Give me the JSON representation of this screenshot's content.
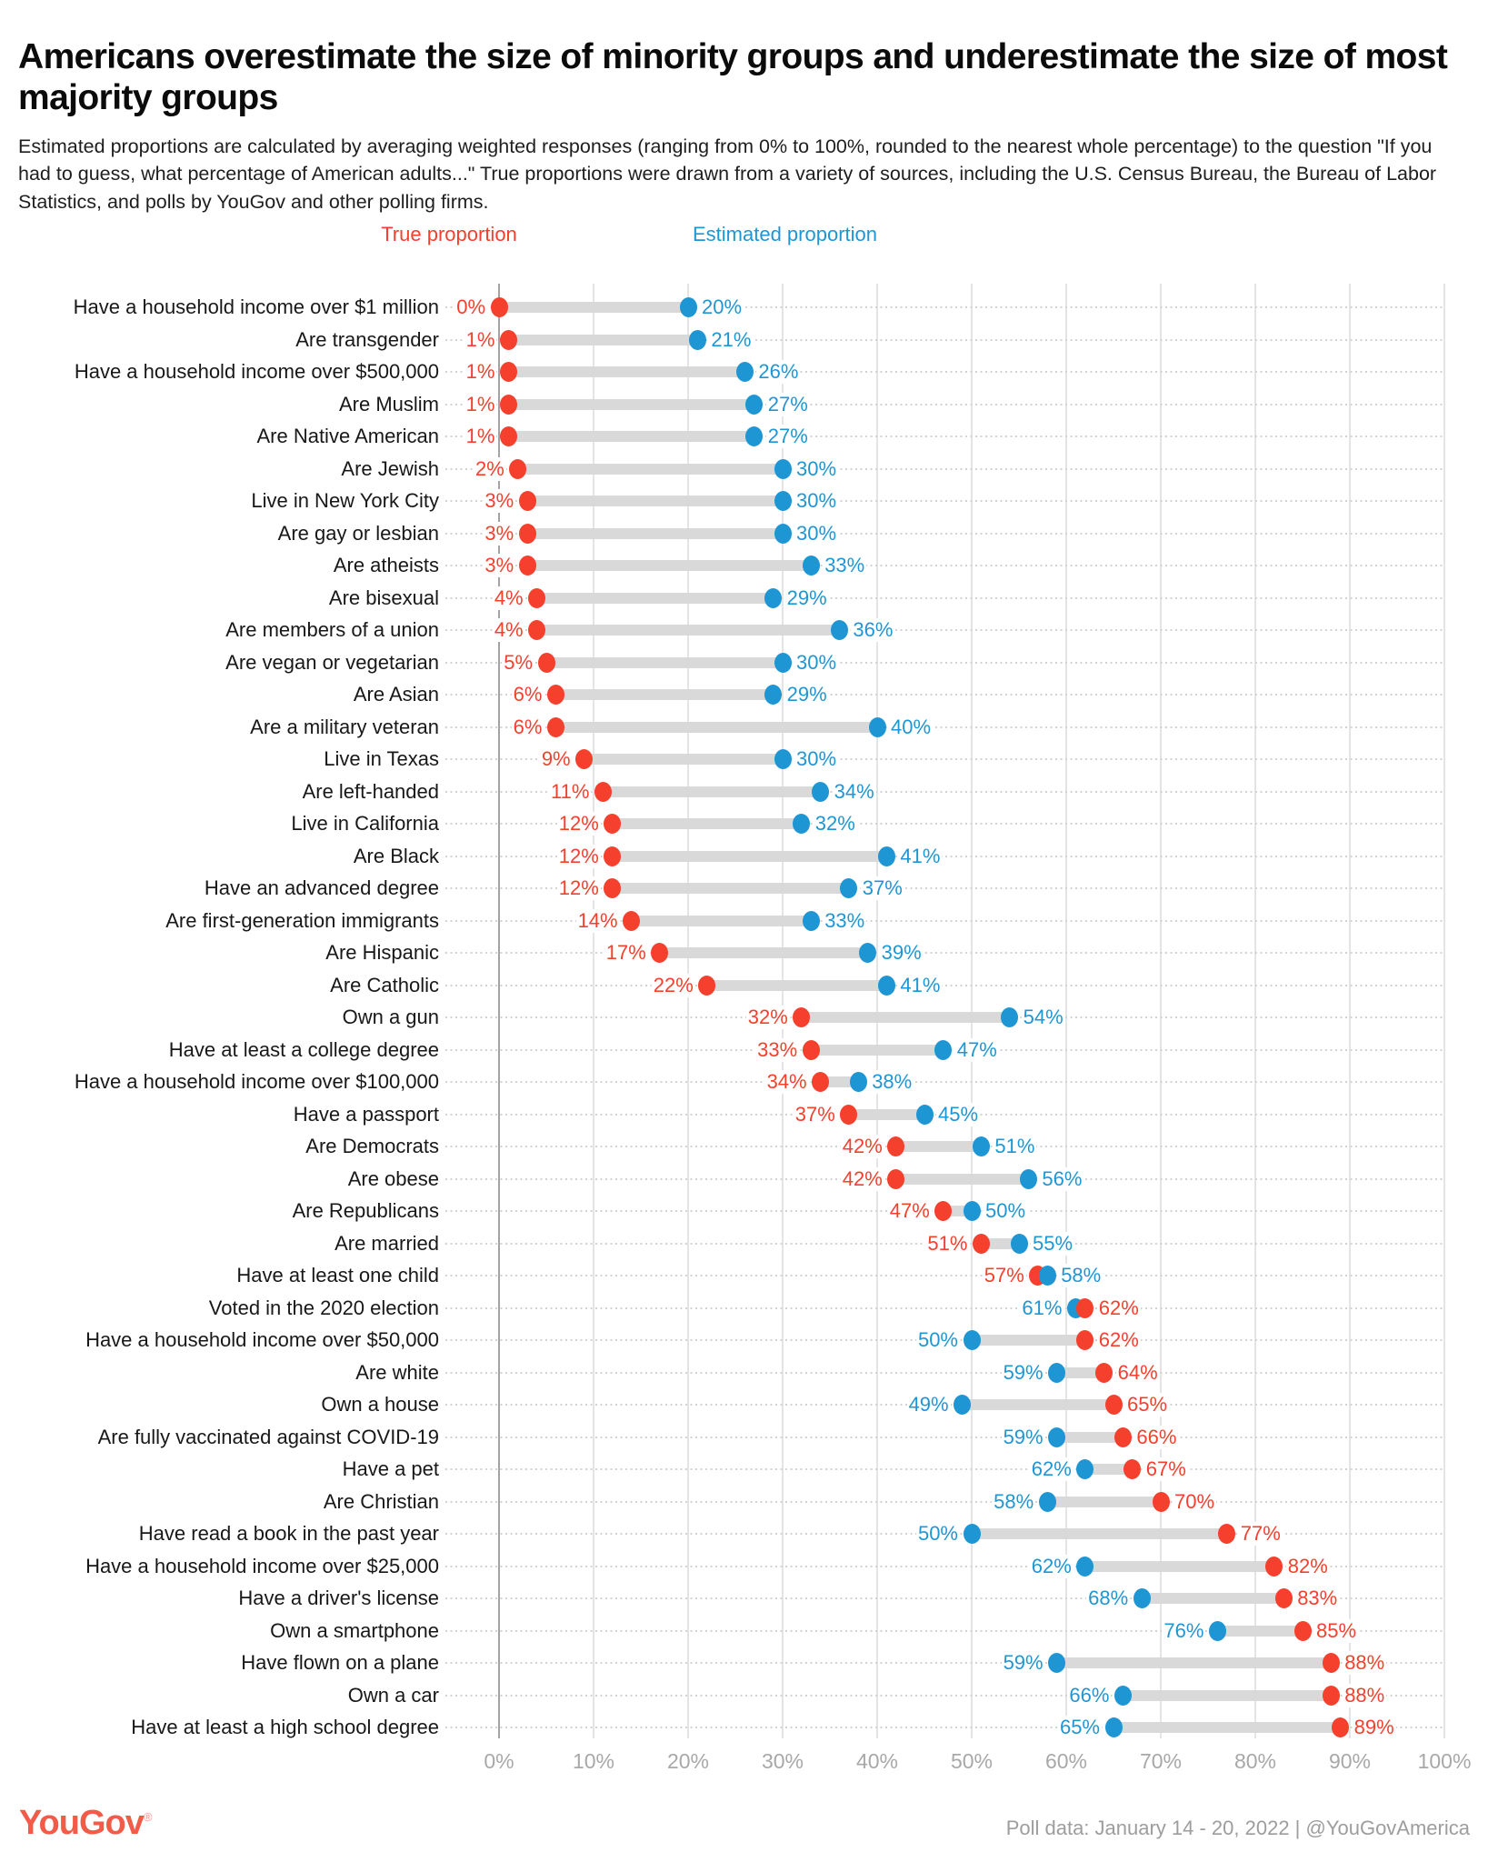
{
  "header": {
    "title": "Americans overestimate the size of minority groups and underestimate the size of most majority groups",
    "subtitle": "Estimated proportions are calculated by averaging weighted responses (ranging from 0% to 100%, rounded to the nearest whole percentage) to the question \"If you had to guess, what percentage of American adults...\" True proportions were drawn from a variety of sources, including the U.S. Census Bureau, the Bureau of Labor Statistics, and polls by YouGov and other polling firms."
  },
  "legend": {
    "true_label": "True proportion",
    "estimated_label": "Estimated proportion"
  },
  "colors": {
    "true_proportion": "#f4402d",
    "estimated_proportion": "#1f96d4",
    "connector": "#d9d9d9",
    "gridline": "#e4e4e4",
    "axis_text": "#a8a8a8"
  },
  "chart_data": {
    "type": "dumbbell",
    "title": "Americans overestimate the size of minority groups and underestimate the size of most majority groups",
    "series": [
      {
        "name": "True proportion",
        "color": "#f4402d"
      },
      {
        "name": "Estimated proportion",
        "color": "#1f96d4"
      }
    ],
    "x_axis": {
      "min": 0,
      "max": 100,
      "tick_labels": [
        "0%",
        "10%",
        "20%",
        "30%",
        "40%",
        "50%",
        "60%",
        "70%",
        "80%",
        "90%",
        "100%"
      ],
      "gridlines": true
    },
    "value_suffix": "%",
    "rows": [
      {
        "label": "Have a household income over $1 million",
        "true_pct": 0,
        "estimated_pct": 20
      },
      {
        "label": "Are transgender",
        "true_pct": 1,
        "estimated_pct": 21
      },
      {
        "label": "Have a household income over $500,000",
        "true_pct": 1,
        "estimated_pct": 26
      },
      {
        "label": "Are Muslim",
        "true_pct": 1,
        "estimated_pct": 27
      },
      {
        "label": "Are Native American",
        "true_pct": 1,
        "estimated_pct": 27
      },
      {
        "label": "Are Jewish",
        "true_pct": 2,
        "estimated_pct": 30
      },
      {
        "label": "Live in New York City",
        "true_pct": 3,
        "estimated_pct": 30
      },
      {
        "label": "Are gay or lesbian",
        "true_pct": 3,
        "estimated_pct": 30
      },
      {
        "label": "Are atheists",
        "true_pct": 3,
        "estimated_pct": 33
      },
      {
        "label": "Are bisexual",
        "true_pct": 4,
        "estimated_pct": 29
      },
      {
        "label": "Are members of a union",
        "true_pct": 4,
        "estimated_pct": 36
      },
      {
        "label": "Are vegan or vegetarian",
        "true_pct": 5,
        "estimated_pct": 30
      },
      {
        "label": "Are Asian",
        "true_pct": 6,
        "estimated_pct": 29
      },
      {
        "label": "Are a military veteran",
        "true_pct": 6,
        "estimated_pct": 40
      },
      {
        "label": "Live in Texas",
        "true_pct": 9,
        "estimated_pct": 30
      },
      {
        "label": "Are left-handed",
        "true_pct": 11,
        "estimated_pct": 34
      },
      {
        "label": "Live in California",
        "true_pct": 12,
        "estimated_pct": 32
      },
      {
        "label": "Are Black",
        "true_pct": 12,
        "estimated_pct": 41
      },
      {
        "label": "Have an advanced degree",
        "true_pct": 12,
        "estimated_pct": 37
      },
      {
        "label": "Are first-generation immigrants",
        "true_pct": 14,
        "estimated_pct": 33
      },
      {
        "label": "Are Hispanic",
        "true_pct": 17,
        "estimated_pct": 39
      },
      {
        "label": "Are Catholic",
        "true_pct": 22,
        "estimated_pct": 41
      },
      {
        "label": "Own a gun",
        "true_pct": 32,
        "estimated_pct": 54
      },
      {
        "label": "Have at least a college degree",
        "true_pct": 33,
        "estimated_pct": 47
      },
      {
        "label": "Have a household income over $100,000",
        "true_pct": 34,
        "estimated_pct": 38
      },
      {
        "label": "Have a passport",
        "true_pct": 37,
        "estimated_pct": 45
      },
      {
        "label": "Are Democrats",
        "true_pct": 42,
        "estimated_pct": 51
      },
      {
        "label": "Are obese",
        "true_pct": 42,
        "estimated_pct": 56
      },
      {
        "label": "Are Republicans",
        "true_pct": 47,
        "estimated_pct": 50
      },
      {
        "label": "Are married",
        "true_pct": 51,
        "estimated_pct": 55
      },
      {
        "label": "Have at least one child",
        "true_pct": 57,
        "estimated_pct": 58
      },
      {
        "label": "Voted in the 2020 election",
        "true_pct": 62,
        "estimated_pct": 61
      },
      {
        "label": "Have a household income over $50,000",
        "true_pct": 62,
        "estimated_pct": 50
      },
      {
        "label": "Are white",
        "true_pct": 64,
        "estimated_pct": 59
      },
      {
        "label": "Own a house",
        "true_pct": 65,
        "estimated_pct": 49
      },
      {
        "label": "Are fully vaccinated against COVID-19",
        "true_pct": 66,
        "estimated_pct": 59
      },
      {
        "label": "Have a pet",
        "true_pct": 67,
        "estimated_pct": 62
      },
      {
        "label": "Are Christian",
        "true_pct": 70,
        "estimated_pct": 58
      },
      {
        "label": "Have read a book in the past year",
        "true_pct": 77,
        "estimated_pct": 50
      },
      {
        "label": "Have a household income over $25,000",
        "true_pct": 82,
        "estimated_pct": 62
      },
      {
        "label": "Have a driver's license",
        "true_pct": 83,
        "estimated_pct": 68
      },
      {
        "label": "Own a smartphone",
        "true_pct": 85,
        "estimated_pct": 76
      },
      {
        "label": "Have flown on a plane",
        "true_pct": 88,
        "estimated_pct": 59
      },
      {
        "label": "Own a car",
        "true_pct": 88,
        "estimated_pct": 66
      },
      {
        "label": "Have at least a high school degree",
        "true_pct": 89,
        "estimated_pct": 65
      }
    ]
  },
  "footer": {
    "logo_text": "YouGov",
    "registered_mark": "®",
    "note": "Poll data: January 14 - 20, 2022 | @YouGovAmerica"
  }
}
